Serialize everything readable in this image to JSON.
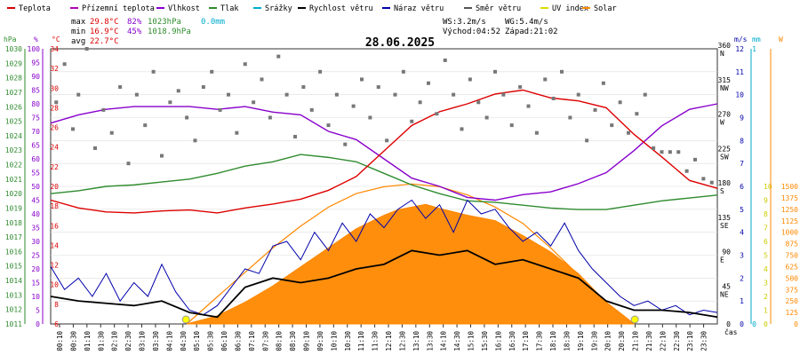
{
  "chart_data": {
    "type": "line",
    "title": "28.06.2025",
    "legend": [
      {
        "label": "Teplota",
        "color": "#dd0000"
      },
      {
        "label": "Přízemní teplota",
        "color": "#b000b0"
      },
      {
        "label": "Vlhkost",
        "color": "#8800cc"
      },
      {
        "label": "Tlak",
        "color": "#2e8b2e"
      },
      {
        "label": "Srážky",
        "color": "#00aacc"
      },
      {
        "label": "Rychlost větru",
        "color": "#000000"
      },
      {
        "label": "Náraz větru",
        "color": "#0000aa"
      },
      {
        "label": "Směr větru",
        "color": "#555555"
      },
      {
        "label": "UV index",
        "color": "#dddd00"
      },
      {
        "label": "Solar",
        "color": "#ff8800"
      }
    ],
    "stats": {
      "max_label": "max",
      "max_temp": "29.8°C",
      "max_hum": "82%",
      "max_press": "1023hPa",
      "rain": "0.0mm",
      "min_label": "min",
      "min_temp": "16.9°C",
      "min_hum": "45%",
      "min_press": "1018.9hPa",
      "avg_label": "avg",
      "avg_temp": "22.7°C",
      "ws": "WS:3.2m/s",
      "wg": "WG:5.4m/s",
      "sunrise": "Východ:04:52",
      "sunset": "Západ:21:02"
    },
    "axes": {
      "hpa": {
        "unit": "hPa",
        "min": 1011,
        "max": 1030,
        "ticks": [
          "1030",
          "1029",
          "1028",
          "1027",
          "1026",
          "1025",
          "1024",
          "1023",
          "1022",
          "1021",
          "1020",
          "1019",
          "1018",
          "1017",
          "1016",
          "1015",
          "1014",
          "1013",
          "1012",
          "1011"
        ]
      },
      "pct": {
        "unit": "%",
        "min": 0,
        "max": 100,
        "ticks": [
          "100",
          "95",
          "90",
          "85",
          "80",
          "75",
          "70",
          "65",
          "60",
          "55",
          "50",
          "45",
          "40",
          "35",
          "30",
          "25",
          "20",
          "15",
          "10",
          "5",
          "0"
        ]
      },
      "temp": {
        "unit": "°C",
        "min": 6,
        "max": 34,
        "ticks": [
          "34",
          "32",
          "30",
          "28",
          "26",
          "24",
          "22",
          "20",
          "18",
          "16",
          "14",
          "12",
          "10",
          "8",
          "6"
        ]
      },
      "dir": {
        "ticks": [
          {
            "v": 360,
            "t": "360",
            "c": "N"
          },
          {
            "v": 315,
            "t": "315",
            "c": "NW"
          },
          {
            "v": 270,
            "t": "270",
            "c": "W"
          },
          {
            "v": 225,
            "t": "225",
            "c": "SW"
          },
          {
            "v": 180,
            "t": "180",
            "c": "S"
          },
          {
            "v": 135,
            "t": "135",
            "c": "SE"
          },
          {
            "v": 90,
            "t": "90",
            "c": "E"
          },
          {
            "v": 45,
            "t": "45",
            "c": "NE"
          },
          {
            "v": 0,
            "t": "0",
            "c": ""
          }
        ]
      },
      "ms": {
        "unit": "m/s",
        "min": 0,
        "max": 12,
        "ticks": [
          "12",
          "11",
          "10",
          "9",
          "8",
          "7",
          "6",
          "5",
          "4",
          "3",
          "2",
          "1",
          "0"
        ]
      },
      "mm": {
        "unit": "mm",
        "ticks": [
          "1",
          "0"
        ]
      },
      "uv": {
        "unit": "UV",
        "ticks": [
          "10",
          "9",
          "8",
          "7",
          "6",
          "5",
          "4",
          "3",
          "2",
          "1",
          "0"
        ]
      },
      "solar": {
        "unit": "W",
        "min": 0,
        "max": 1500,
        "ticks": [
          "1500",
          "1375",
          "1250",
          "1125",
          "1000",
          "875",
          "750",
          "625",
          "500",
          "375",
          "250",
          "125",
          "0"
        ]
      },
      "x_ticks": [
        "00:10",
        "00:30",
        "01:10",
        "01:30",
        "02:10",
        "02:30",
        "03:10",
        "03:30",
        "04:10",
        "04:30",
        "05:10",
        "05:30",
        "06:10",
        "06:30",
        "07:10",
        "07:30",
        "08:10",
        "08:30",
        "09:10",
        "09:30",
        "10:10",
        "10:30",
        "11:10",
        "11:30",
        "12:10",
        "12:30",
        "13:10",
        "13:30",
        "14:10",
        "14:30",
        "15:10",
        "15:30",
        "16:10",
        "16:30",
        "17:10",
        "17:30",
        "18:10",
        "18:30",
        "19:10",
        "19:30",
        "20:10",
        "20:30",
        "21:10",
        "21:30",
        "22:10",
        "22:30",
        "23:10",
        "23:30"
      ],
      "x_unit": "čas"
    },
    "series": {
      "temperature_h": [
        0,
        1,
        2,
        3,
        4,
        5,
        6,
        7,
        8,
        9,
        10,
        11,
        12,
        13,
        14,
        15,
        16,
        17,
        18,
        19,
        20,
        21,
        22,
        23,
        24
      ],
      "temperature_v": [
        18.6,
        17.8,
        17.4,
        17.3,
        17.5,
        17.6,
        17.3,
        17.8,
        18.2,
        18.7,
        19.6,
        21.0,
        23.6,
        26.2,
        27.6,
        28.4,
        29.4,
        29.8,
        29.0,
        28.7,
        28.0,
        25.3,
        23.0,
        20.6,
        19.8
      ],
      "humidity_h": [
        0,
        1,
        2,
        3,
        4,
        5,
        6,
        7,
        8,
        9,
        10,
        11,
        12,
        13,
        14,
        15,
        16,
        17,
        18,
        19,
        20,
        21,
        22,
        23,
        24
      ],
      "humidity_v": [
        73,
        76,
        78,
        79,
        79,
        79,
        78,
        79,
        77,
        76,
        70,
        67,
        60,
        53,
        50,
        46,
        45,
        47,
        48,
        51,
        55,
        63,
        72,
        78,
        80
      ],
      "pressure_h": [
        0,
        1,
        2,
        3,
        4,
        5,
        6,
        7,
        8,
        9,
        10,
        11,
        12,
        13,
        14,
        15,
        16,
        17,
        18,
        19,
        20,
        21,
        22,
        23,
        24
      ],
      "pressure_v": [
        1020.0,
        1020.2,
        1020.5,
        1020.6,
        1020.8,
        1021.0,
        1021.4,
        1021.9,
        1022.2,
        1022.7,
        1022.5,
        1022.2,
        1021.4,
        1020.6,
        1020.0,
        1019.5,
        1019.4,
        1019.2,
        1019.0,
        1018.9,
        1018.9,
        1019.2,
        1019.5,
        1019.7,
        1019.9
      ],
      "solar_h": [
        4.9,
        6,
        7,
        8,
        9,
        10,
        11,
        12,
        12.5,
        13,
        13.5,
        14,
        15,
        16,
        17,
        18,
        19,
        20,
        21
      ],
      "solar_v": [
        0,
        60,
        160,
        280,
        420,
        560,
        700,
        800,
        840,
        860,
        880,
        850,
        800,
        760,
        650,
        530,
        370,
        160,
        0
      ],
      "solar_max_h": [
        4.9,
        6,
        7,
        8,
        9,
        10,
        11,
        12,
        13,
        14,
        15,
        16,
        17,
        18,
        19,
        20,
        21
      ],
      "solar_max_v": [
        0,
        200,
        380,
        560,
        720,
        860,
        960,
        1010,
        1030,
        1010,
        950,
        860,
        740,
        560,
        360,
        160,
        0
      ],
      "wind_h": [
        0,
        1,
        2,
        3,
        4,
        5,
        6,
        7,
        8,
        9,
        10,
        11,
        12,
        13,
        14,
        15,
        16,
        17,
        18,
        19,
        20,
        21,
        22,
        23,
        24
      ],
      "wind_v": [
        1.2,
        1.0,
        0.9,
        0.8,
        1.0,
        0.5,
        0.3,
        1.6,
        2.0,
        1.8,
        2.0,
        2.4,
        2.6,
        3.2,
        3.0,
        3.2,
        2.6,
        2.8,
        2.4,
        2.0,
        1.0,
        0.6,
        0.6,
        0.5,
        0.3
      ],
      "gust_h": [
        0,
        0.5,
        1,
        1.5,
        2,
        2.5,
        3,
        3.5,
        4,
        4.5,
        5,
        5.5,
        6,
        6.5,
        7,
        7.5,
        8,
        8.5,
        9,
        9.5,
        10,
        10.5,
        11,
        11.5,
        12,
        12.5,
        13,
        13.5,
        14,
        14.5,
        15,
        15.5,
        16,
        16.5,
        17,
        17.5,
        18,
        18.5,
        19,
        19.5,
        20,
        20.5,
        21,
        21.5,
        22,
        22.5,
        23,
        23.5,
        24
      ],
      "gust_v": [
        2.5,
        1.5,
        2.0,
        1.2,
        2.2,
        1.0,
        1.8,
        1.2,
        2.6,
        1.4,
        0.6,
        0.4,
        0.8,
        1.6,
        2.4,
        2.2,
        3.4,
        3.6,
        2.8,
        4.0,
        3.2,
        4.4,
        3.6,
        4.8,
        4.2,
        5.0,
        5.4,
        4.6,
        5.2,
        4.0,
        5.4,
        4.8,
        5.0,
        4.2,
        3.6,
        4.0,
        3.4,
        4.4,
        3.2,
        2.4,
        1.8,
        1.2,
        0.8,
        1.0,
        0.6,
        0.8,
        0.4,
        0.6,
        0.5
      ],
      "winddir_h": [
        0.2,
        0.5,
        0.8,
        1.0,
        1.3,
        1.6,
        1.9,
        2.2,
        2.5,
        2.8,
        3.1,
        3.4,
        3.7,
        4.0,
        4.3,
        4.6,
        4.9,
        5.2,
        5.5,
        5.8,
        6.1,
        6.4,
        6.7,
        7.0,
        7.3,
        7.6,
        7.9,
        8.2,
        8.5,
        8.8,
        9.1,
        9.4,
        9.7,
        10.0,
        10.3,
        10.6,
        10.9,
        11.2,
        11.5,
        11.8,
        12.1,
        12.4,
        12.7,
        13.0,
        13.3,
        13.6,
        13.9,
        14.2,
        14.5,
        14.8,
        15.1,
        15.4,
        15.7,
        16.0,
        16.3,
        16.6,
        16.9,
        17.2,
        17.5,
        17.8,
        18.1,
        18.4,
        18.7,
        19.0,
        19.3,
        19.6,
        19.9,
        20.2,
        20.5,
        20.8,
        21.1,
        21.4,
        21.7,
        22.0,
        22.3,
        22.6,
        22.9,
        23.2,
        23.5,
        23.8
      ],
      "winddir_v": [
        290,
        340,
        255,
        300,
        360,
        230,
        280,
        250,
        310,
        210,
        300,
        260,
        330,
        220,
        290,
        305,
        270,
        240,
        310,
        330,
        280,
        300,
        250,
        340,
        290,
        320,
        270,
        350,
        300,
        245,
        310,
        280,
        330,
        260,
        300,
        235,
        285,
        320,
        270,
        310,
        240,
        300,
        330,
        265,
        290,
        315,
        275,
        345,
        300,
        255,
        320,
        290,
        270,
        330,
        300,
        260,
        310,
        285,
        250,
        320,
        295,
        330,
        270,
        300,
        240,
        280,
        315,
        260,
        290,
        250,
        275,
        300,
        230,
        225,
        225,
        225,
        200,
        215,
        190,
        185
      ]
    }
  }
}
